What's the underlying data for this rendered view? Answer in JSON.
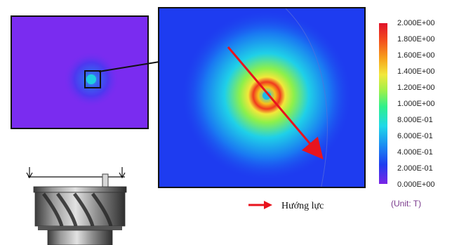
{
  "colorbar": {
    "ticks": [
      "2.000E+00",
      "1.800E+00",
      "1.600E+00",
      "1.400E+00",
      "1.200E+00",
      "1.000E+00",
      "8.000E-01",
      "6.000E-01",
      "4.000E-01",
      "2.000E-01",
      "0.000E+00"
    ],
    "unit": "(Unit: T)"
  },
  "legend": {
    "force_direction": "Hướng lực"
  },
  "colors": {
    "background_field": "#7a2cf0",
    "arrow": "#e8131d",
    "frame": "#111111"
  },
  "icons": [
    "force-direction-arrow-icon",
    "load-arrow-icon"
  ]
}
